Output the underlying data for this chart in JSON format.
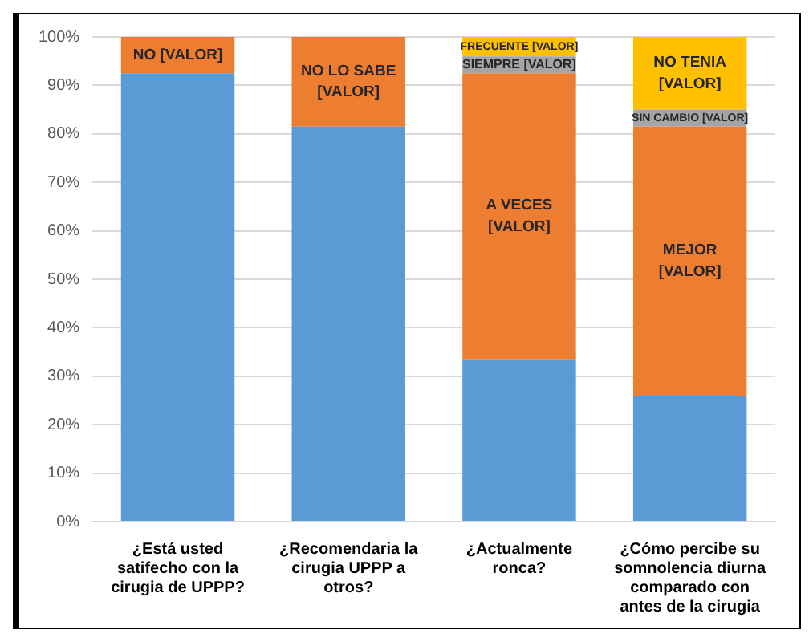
{
  "chart_data": {
    "type": "bar",
    "stacked": true,
    "categories": [
      "¿Está usted satifecho con la cirugia de UPPP?",
      "¿Recomendaria la cirugia UPPP a otros?",
      "¿Actualmente ronca?",
      "¿Cómo percibe su somnolencia diurna comparado con antes de la cirugia"
    ],
    "series": [
      {
        "color": "#5b9bd5",
        "values": [
          92.5,
          81.5,
          33.5,
          26
        ]
      },
      {
        "color": "#ed7d31",
        "values": [
          7.5,
          18.5,
          59,
          55.5
        ],
        "value_labels": [
          "NO [VALOR]",
          "NO LO SABE\n[VALOR]",
          "A VECES\n[VALOR]",
          "MEJOR\n[VALOR]"
        ]
      },
      {
        "color": "#a5a5a5",
        "values": [
          null,
          null,
          3.5,
          3.5
        ],
        "value_labels": [
          null,
          null,
          "SIEMPRE [VALOR]",
          "SIN CAMBIO [VALOR]"
        ]
      },
      {
        "color": "#ffc000",
        "values": [
          null,
          null,
          4,
          15
        ],
        "value_labels": [
          null,
          null,
          "FRECUENTE [VALOR]",
          "NO TENIA\n[VALOR]"
        ]
      }
    ],
    "ylim": [
      0,
      100
    ],
    "yticks": [
      {
        "value": 0,
        "label": "0%"
      },
      {
        "value": 10,
        "label": "10%"
      },
      {
        "value": 20,
        "label": "20%"
      },
      {
        "value": 30,
        "label": "30%"
      },
      {
        "value": 40,
        "label": "40%"
      },
      {
        "value": 50,
        "label": "50%"
      },
      {
        "value": 60,
        "label": "60%"
      },
      {
        "value": 70,
        "label": "70%"
      },
      {
        "value": 80,
        "label": "80%"
      },
      {
        "value": 90,
        "label": "90%"
      },
      {
        "value": 100,
        "label": "100%"
      }
    ],
    "grid": "y",
    "legend": false
  }
}
